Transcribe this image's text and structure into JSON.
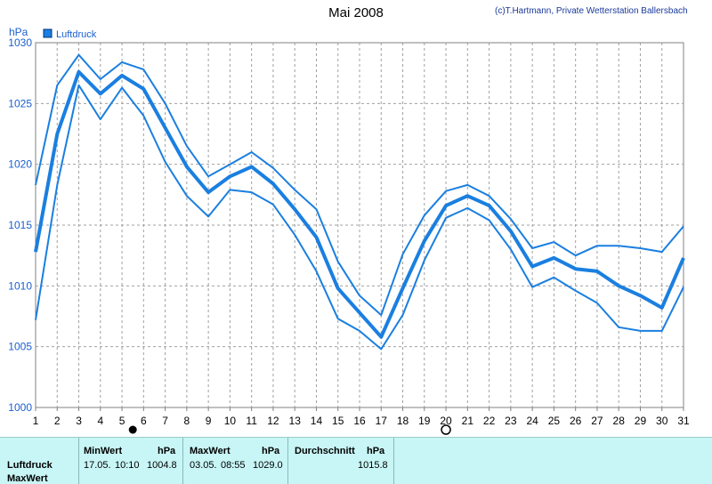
{
  "chart_data": {
    "type": "line",
    "title": "Mai 2008",
    "credit": "(c)T.Hartmann, Private Wetterstation Ballersbach",
    "ylabel": "hPa",
    "ylim": [
      1000,
      1030
    ],
    "yticks": [
      1000,
      1005,
      1010,
      1015,
      1020,
      1025,
      1030
    ],
    "x": [
      1,
      2,
      3,
      4,
      5,
      6,
      7,
      8,
      9,
      10,
      11,
      12,
      13,
      14,
      15,
      16,
      17,
      18,
      19,
      20,
      21,
      22,
      23,
      24,
      25,
      26,
      27,
      28,
      29,
      30,
      31
    ],
    "grid": true,
    "legend": "top-left",
    "legend_label": "Luftdruck",
    "moon_symbols": {
      "new_moon_day": 5.5,
      "full_moon_day": 20
    },
    "series": [
      {
        "name": "Luftdruck",
        "role": "max",
        "color": "#1a7fe0",
        "width": 2,
        "values": [
          1018.3,
          1026.5,
          1029.0,
          1027.0,
          1028.4,
          1027.8,
          1025.0,
          1021.5,
          1019.0,
          1020.0,
          1021.0,
          1019.7,
          1017.9,
          1016.3,
          1012.0,
          1009.2,
          1007.6,
          1012.6,
          1015.8,
          1017.8,
          1018.3,
          1017.4,
          1015.5,
          1013.1,
          1013.6,
          1012.5,
          1013.3,
          1013.3,
          1013.1,
          1012.8,
          1014.9
        ]
      },
      {
        "name": "Luftdruck",
        "role": "mean",
        "color": "#1a7fe0",
        "width": 4,
        "values": [
          1012.8,
          1022.5,
          1027.6,
          1025.8,
          1027.3,
          1026.2,
          1023.0,
          1019.8,
          1017.7,
          1019.0,
          1019.8,
          1018.4,
          1016.3,
          1014.0,
          1009.8,
          1007.8,
          1005.8,
          1009.8,
          1013.7,
          1016.6,
          1017.4,
          1016.6,
          1014.5,
          1011.6,
          1012.3,
          1011.4,
          1011.2,
          1010.0,
          1009.2,
          1008.2,
          1012.3
        ]
      },
      {
        "name": "Luftdruck",
        "role": "min",
        "color": "#1a7fe0",
        "width": 2,
        "values": [
          1007.2,
          1018.3,
          1026.5,
          1023.7,
          1026.3,
          1024.0,
          1020.2,
          1017.4,
          1015.7,
          1017.9,
          1017.7,
          1016.7,
          1014.2,
          1011.2,
          1007.3,
          1006.3,
          1004.8,
          1007.6,
          1012.1,
          1015.6,
          1016.4,
          1015.4,
          1013.0,
          1009.9,
          1010.7,
          1009.6,
          1008.6,
          1006.6,
          1006.3,
          1006.3,
          1009.9
        ]
      }
    ]
  },
  "footer": {
    "row_label_1": "Luftdruck",
    "row_label_2": "MaxWert",
    "min_header": "MinWert",
    "min_unit": "hPa",
    "min_date": "17.05.",
    "min_time": "10:10",
    "min_value": "1004.8",
    "max_header": "MaxWert",
    "max_unit": "hPa",
    "max_date": "03.05.",
    "max_time": "08:55",
    "max_value": "1029.0",
    "avg_header": "Durchschnitt",
    "avg_unit": "hPa",
    "avg_value": "1015.8"
  }
}
